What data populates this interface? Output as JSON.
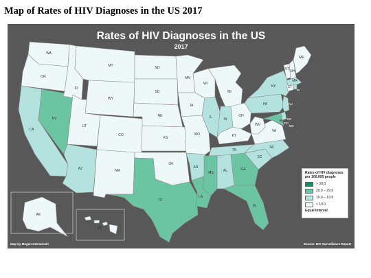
{
  "page": {
    "heading": "Map of Rates of HIV Diagnoses in the US 2017"
  },
  "map": {
    "title": "Rates of HIV Diagnoses in the US",
    "year": "2017",
    "credit_left": "Map by Megan Czerwinski",
    "credit_right": "Source: HIV Surveillance Report"
  },
  "legend": {
    "title_line1": "Rates of HIV diagnoses",
    "title_line2": "per 100,000 people",
    "classes": [
      {
        "label": "> 30.0",
        "color": "#1f8a5e"
      },
      {
        "label": "20.0 – 29.9",
        "color": "#6cc5a2"
      },
      {
        "label": "10.0 – 19.9",
        "color": "#b4e3df"
      },
      {
        "label": "< 10.0",
        "color": "#eef8f8"
      }
    ],
    "note": "Equal Interval"
  },
  "colors": {
    "background": "#585858",
    "state_border": "#8a8a8a"
  },
  "states": [
    {
      "abbr": "WA",
      "rate_class": "< 10.0"
    },
    {
      "abbr": "OR",
      "rate_class": "< 10.0"
    },
    {
      "abbr": "CA",
      "rate_class": "10.0 – 19.9"
    },
    {
      "abbr": "NV",
      "rate_class": "20.0 – 29.9"
    },
    {
      "abbr": "ID",
      "rate_class": "< 10.0"
    },
    {
      "abbr": "MT",
      "rate_class": "< 10.0"
    },
    {
      "abbr": "WY",
      "rate_class": "< 10.0"
    },
    {
      "abbr": "UT",
      "rate_class": "< 10.0"
    },
    {
      "abbr": "AZ",
      "rate_class": "10.0 – 19.9"
    },
    {
      "abbr": "CO",
      "rate_class": "< 10.0"
    },
    {
      "abbr": "NM",
      "rate_class": "< 10.0"
    },
    {
      "abbr": "ND",
      "rate_class": "< 10.0"
    },
    {
      "abbr": "SD",
      "rate_class": "< 10.0"
    },
    {
      "abbr": "NE",
      "rate_class": "< 10.0"
    },
    {
      "abbr": "KS",
      "rate_class": "< 10.0"
    },
    {
      "abbr": "OK",
      "rate_class": "< 10.0"
    },
    {
      "abbr": "TX",
      "rate_class": "20.0 – 29.9"
    },
    {
      "abbr": "MN",
      "rate_class": "< 10.0"
    },
    {
      "abbr": "IA",
      "rate_class": "< 10.0"
    },
    {
      "abbr": "MO",
      "rate_class": "< 10.0"
    },
    {
      "abbr": "AR",
      "rate_class": "10.0 – 19.9"
    },
    {
      "abbr": "LA",
      "rate_class": "20.0 – 29.9"
    },
    {
      "abbr": "WI",
      "rate_class": "< 10.0"
    },
    {
      "abbr": "IL",
      "rate_class": "10.0 – 19.9"
    },
    {
      "abbr": "MI",
      "rate_class": "< 10.0"
    },
    {
      "abbr": "IN",
      "rate_class": "10.0 – 19.9"
    },
    {
      "abbr": "OH",
      "rate_class": "< 10.0"
    },
    {
      "abbr": "KY",
      "rate_class": "< 10.0"
    },
    {
      "abbr": "TN",
      "rate_class": "10.0 – 19.9"
    },
    {
      "abbr": "MS",
      "rate_class": "20.0 – 29.9"
    },
    {
      "abbr": "AL",
      "rate_class": "10.0 – 19.9"
    },
    {
      "abbr": "GA",
      "rate_class": "20.0 – 29.9"
    },
    {
      "abbr": "FL",
      "rate_class": "20.0 – 29.9"
    },
    {
      "abbr": "SC",
      "rate_class": "10.0 – 19.9"
    },
    {
      "abbr": "NC",
      "rate_class": "10.0 – 19.9"
    },
    {
      "abbr": "VA",
      "rate_class": "< 10.0"
    },
    {
      "abbr": "WV",
      "rate_class": "< 10.0"
    },
    {
      "abbr": "PA",
      "rate_class": "10.0 – 19.9"
    },
    {
      "abbr": "NY",
      "rate_class": "10.0 – 19.9"
    },
    {
      "abbr": "VT",
      "rate_class": "< 10.0"
    },
    {
      "abbr": "NH",
      "rate_class": "< 10.0"
    },
    {
      "abbr": "ME",
      "rate_class": "< 10.0"
    },
    {
      "abbr": "MA",
      "rate_class": "10.0 – 19.9"
    },
    {
      "abbr": "CT",
      "rate_class": "< 10.0"
    },
    {
      "abbr": "RI",
      "rate_class": "10.0 – 19.9"
    },
    {
      "abbr": "NJ",
      "rate_class": "10.0 – 19.9"
    },
    {
      "abbr": "DE",
      "rate_class": "10.0 – 19.9"
    },
    {
      "abbr": "MD",
      "rate_class": "20.0 – 29.9"
    },
    {
      "abbr": "DC",
      "rate_class": "> 30.0"
    },
    {
      "abbr": "AK",
      "rate_class": "< 10.0"
    },
    {
      "abbr": "HI",
      "rate_class": "< 10.0"
    }
  ]
}
